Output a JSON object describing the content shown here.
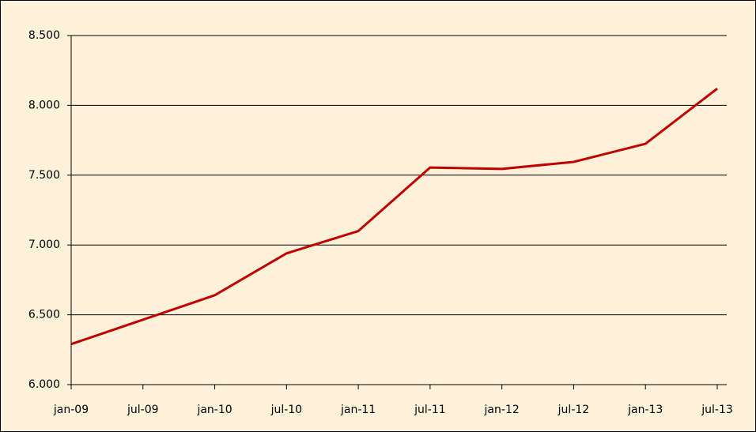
{
  "chart_data": {
    "type": "line",
    "categories": [
      "jan-09",
      "jul-09",
      "jan-10",
      "jul-10",
      "jan-11",
      "jul-11",
      "jan-12",
      "jul-12",
      "jan-13",
      "jul-13"
    ],
    "series": [
      {
        "color": "#c00000",
        "values": [
          6290,
          6465,
          6640,
          6940,
          7100,
          7555,
          7545,
          7595,
          7725,
          8120
        ]
      }
    ],
    "ylim": [
      6000,
      8500
    ],
    "yticks": [
      {
        "value": 6000,
        "label": "6.000"
      },
      {
        "value": 6500,
        "label": "6.500"
      },
      {
        "value": 7000,
        "label": "7.000"
      },
      {
        "value": 7500,
        "label": "7.500"
      },
      {
        "value": 8000,
        "label": "8.000"
      },
      {
        "value": 8500,
        "label": "8.500"
      }
    ],
    "grid": true
  }
}
